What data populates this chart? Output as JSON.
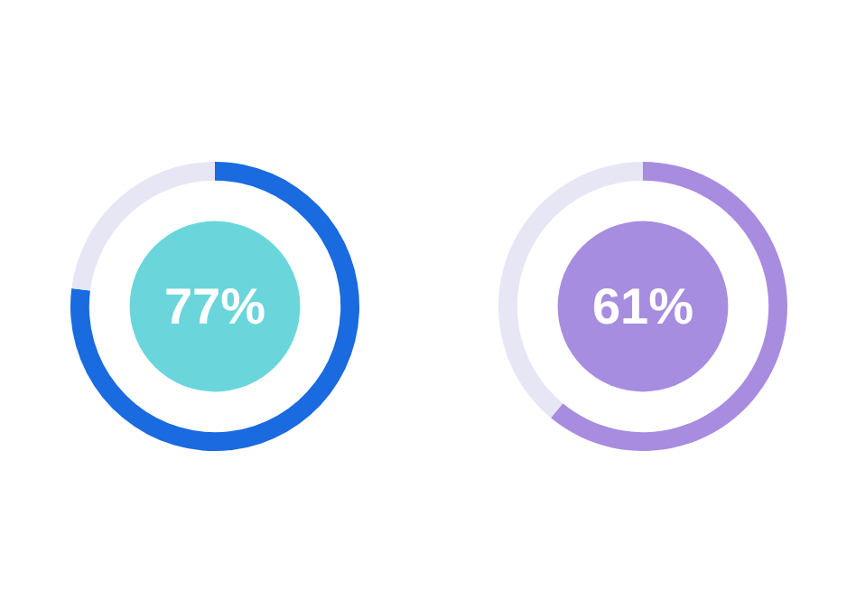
{
  "chart_data": [
    {
      "type": "donut",
      "categories": [
        null,
        null
      ],
      "values": [
        77,
        23
      ],
      "colors": [
        "#1a6ae0",
        "#e6e6f5"
      ],
      "annotations": [
        "77%"
      ]
    },
    {
      "type": "donut",
      "categories": [
        null,
        null
      ],
      "values": [
        61,
        39
      ],
      "colors": [
        "#a78ce0",
        "#e6e6f5"
      ],
      "annotations": [
        "61%"
      ]
    }
  ]
}
